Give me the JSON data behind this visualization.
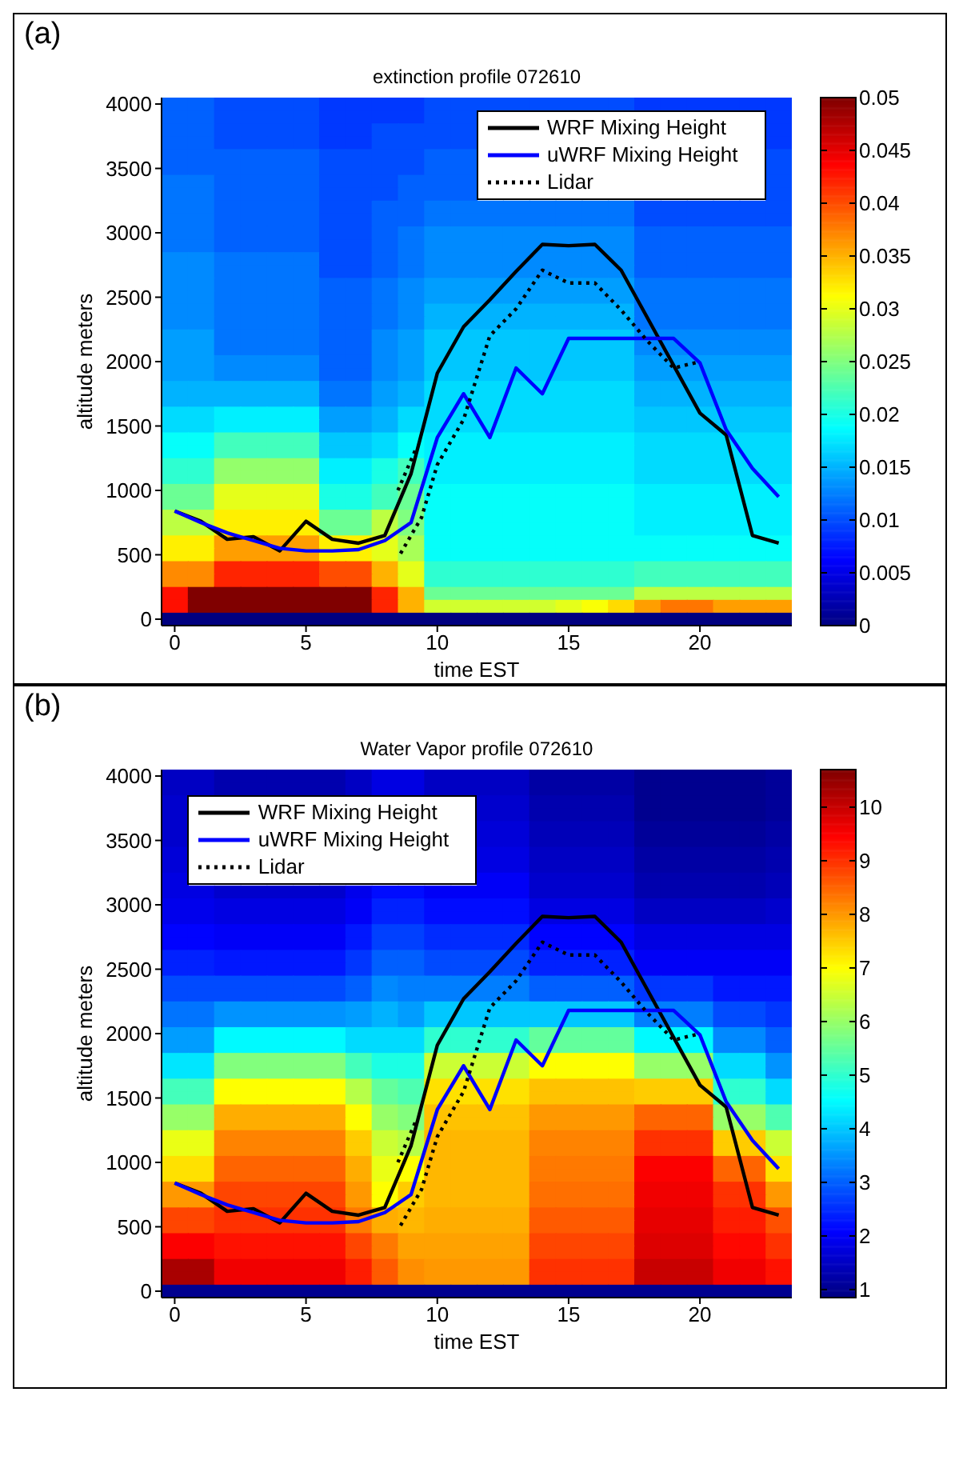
{
  "chart_data": [
    {
      "type": "heatmap",
      "title": "extinction profile 072610",
      "annotations": [
        "(a)"
      ],
      "xlabel": "time EST",
      "ylabel": "altitude meters",
      "xlim": [
        -0.5,
        23.5
      ],
      "ylim": [
        -50,
        4050
      ],
      "xticks": [
        0,
        5,
        10,
        15,
        20
      ],
      "yticks": [
        0,
        500,
        1000,
        1500,
        2000,
        2500,
        3000,
        3500,
        4000
      ],
      "clim": [
        0,
        0.05
      ],
      "cticks": [
        0,
        0.005,
        0.01,
        0.015,
        0.02,
        0.025,
        0.03,
        0.035,
        0.04,
        0.045,
        0.05
      ],
      "legend": "top right",
      "cells": [
        [
          0.011,
          0.011,
          0.01,
          0.01,
          0.01,
          0.01,
          0.009,
          0.009,
          0.009,
          0.009,
          0.01,
          0.01,
          0.01,
          0.01,
          0.01,
          0.01,
          0.01,
          0.01,
          0.009,
          0.009,
          0.009,
          0.009,
          0.009,
          0.009
        ],
        [
          0.011,
          0.011,
          0.01,
          0.01,
          0.01,
          0.01,
          0.009,
          0.009,
          0.009,
          0.009,
          0.01,
          0.01,
          null,
          null,
          null,
          null,
          null,
          null,
          null,
          null,
          null,
          null,
          null,
          0.009
        ],
        [
          0.011,
          0.011,
          0.01,
          0.01,
          0.01,
          0.01,
          0.009,
          0.009,
          0.01,
          0.01,
          0.01,
          0.01,
          null,
          null,
          null,
          null,
          null,
          null,
          null,
          null,
          null,
          null,
          null,
          0.009
        ],
        [
          0.011,
          0.011,
          0.01,
          0.01,
          0.01,
          0.01,
          0.009,
          0.009,
          0.01,
          0.01,
          0.01,
          0.01,
          null,
          null,
          null,
          null,
          null,
          null,
          null,
          null,
          null,
          null,
          null,
          0.009
        ],
        [
          0.011,
          0.011,
          0.011,
          0.011,
          0.011,
          0.011,
          0.01,
          0.01,
          0.01,
          0.01,
          0.011,
          0.011,
          null,
          null,
          null,
          null,
          null,
          null,
          null,
          null,
          null,
          null,
          null,
          0.01
        ],
        [
          0.011,
          0.011,
          0.011,
          0.011,
          0.011,
          0.011,
          0.01,
          0.01,
          0.01,
          0.01,
          0.011,
          0.011,
          null,
          null,
          null,
          null,
          null,
          null,
          null,
          null,
          null,
          null,
          null,
          0.01
        ],
        [
          0.012,
          0.012,
          0.011,
          0.011,
          0.011,
          0.011,
          0.01,
          0.01,
          0.01,
          0.011,
          0.011,
          0.011,
          null,
          null,
          null,
          null,
          null,
          null,
          null,
          null,
          null,
          null,
          null,
          0.01
        ],
        [
          0.012,
          0.012,
          0.011,
          0.011,
          0.011,
          0.011,
          0.01,
          0.01,
          0.01,
          0.011,
          0.011,
          0.011,
          null,
          null,
          null,
          null,
          null,
          null,
          null,
          null,
          null,
          null,
          null,
          0.01
        ],
        [
          0.012,
          0.012,
          0.011,
          0.011,
          0.011,
          0.011,
          0.01,
          0.01,
          0.011,
          0.011,
          0.012,
          0.012,
          0.012,
          0.012,
          0.012,
          0.012,
          0.012,
          0.012,
          0.01,
          0.01,
          0.01,
          0.01,
          0.01,
          0.01
        ],
        [
          0.012,
          0.012,
          0.011,
          0.011,
          0.011,
          0.011,
          0.01,
          0.01,
          0.011,
          0.011,
          0.012,
          0.012,
          0.012,
          0.012,
          0.012,
          0.012,
          0.012,
          0.012,
          0.01,
          0.01,
          0.01,
          0.01,
          0.01,
          0.01
        ],
        [
          0.012,
          0.012,
          0.011,
          0.011,
          0.011,
          0.011,
          0.01,
          0.01,
          0.011,
          0.012,
          0.013,
          0.013,
          0.013,
          0.013,
          0.013,
          0.013,
          0.013,
          0.013,
          0.011,
          0.011,
          0.011,
          0.011,
          0.011,
          0.011
        ],
        [
          0.012,
          0.012,
          0.011,
          0.011,
          0.011,
          0.011,
          0.01,
          0.01,
          0.011,
          0.012,
          0.013,
          0.013,
          0.013,
          0.013,
          0.013,
          0.013,
          0.013,
          0.013,
          0.011,
          0.011,
          0.011,
          0.011,
          0.011,
          0.011
        ],
        [
          0.013,
          0.013,
          0.012,
          0.012,
          0.012,
          0.012,
          0.01,
          0.01,
          0.011,
          0.012,
          0.013,
          0.013,
          0.013,
          0.013,
          0.013,
          0.013,
          0.013,
          0.013,
          0.011,
          0.011,
          0.011,
          0.011,
          0.011,
          0.011
        ],
        [
          0.013,
          0.013,
          0.012,
          0.012,
          0.012,
          0.012,
          0.01,
          0.01,
          0.011,
          0.012,
          0.013,
          0.013,
          0.013,
          0.013,
          0.013,
          0.013,
          0.013,
          0.013,
          0.011,
          0.011,
          0.011,
          0.011,
          0.011,
          0.011
        ],
        [
          0.013,
          0.013,
          0.012,
          0.012,
          0.012,
          0.012,
          0.011,
          0.011,
          0.012,
          0.013,
          0.014,
          0.014,
          0.014,
          0.014,
          0.014,
          0.014,
          0.014,
          0.014,
          0.012,
          0.012,
          0.012,
          0.012,
          0.012,
          0.012
        ],
        [
          0.013,
          0.013,
          0.012,
          0.012,
          0.012,
          0.012,
          0.011,
          0.011,
          0.012,
          0.013,
          0.014,
          0.014,
          0.014,
          0.014,
          0.014,
          0.014,
          0.014,
          0.014,
          0.012,
          0.012,
          0.012,
          0.012,
          0.012,
          0.012
        ],
        [
          0.013,
          0.013,
          0.012,
          0.012,
          0.012,
          0.012,
          0.011,
          0.011,
          0.012,
          0.013,
          0.015,
          0.015,
          0.015,
          0.015,
          0.015,
          0.015,
          0.015,
          0.015,
          0.012,
          0.012,
          0.012,
          0.012,
          0.012,
          0.012
        ],
        [
          0.013,
          0.013,
          0.012,
          0.012,
          0.012,
          0.012,
          0.011,
          0.011,
          0.012,
          0.013,
          0.015,
          0.015,
          0.015,
          0.015,
          0.015,
          0.015,
          0.015,
          0.015,
          0.012,
          0.012,
          0.012,
          0.012,
          0.012,
          0.012
        ],
        [
          0.014,
          0.014,
          0.012,
          0.012,
          0.012,
          0.012,
          0.011,
          0.011,
          0.013,
          0.014,
          0.016,
          0.016,
          0.016,
          0.016,
          0.016,
          0.016,
          0.016,
          0.016,
          0.013,
          0.013,
          0.013,
          0.013,
          0.013,
          0.013
        ],
        [
          0.014,
          0.014,
          0.012,
          0.012,
          0.012,
          0.012,
          0.011,
          0.011,
          0.013,
          0.014,
          0.016,
          0.016,
          0.016,
          0.016,
          0.016,
          0.016,
          0.016,
          0.016,
          0.013,
          0.013,
          0.013,
          0.013,
          0.013,
          0.013
        ],
        [
          0.014,
          0.014,
          0.013,
          0.013,
          0.013,
          0.013,
          0.011,
          0.011,
          0.013,
          0.014,
          0.016,
          0.016,
          0.016,
          0.016,
          0.016,
          0.016,
          0.016,
          0.016,
          0.014,
          0.014,
          0.014,
          0.014,
          0.014,
          0.014
        ],
        [
          0.014,
          0.014,
          0.013,
          0.013,
          0.013,
          0.013,
          0.011,
          0.011,
          0.013,
          0.014,
          0.016,
          0.016,
          0.016,
          0.016,
          0.016,
          0.016,
          0.016,
          0.016,
          0.014,
          0.014,
          0.014,
          0.014,
          0.014,
          0.014
        ],
        [
          0.015,
          0.015,
          0.015,
          0.015,
          0.015,
          0.015,
          0.012,
          0.012,
          0.014,
          0.015,
          0.017,
          0.017,
          0.017,
          0.017,
          0.017,
          0.017,
          0.017,
          0.017,
          0.015,
          0.015,
          0.015,
          0.015,
          0.015,
          0.015
        ],
        [
          0.015,
          0.015,
          0.015,
          0.015,
          0.015,
          0.015,
          0.012,
          0.012,
          0.014,
          0.015,
          0.017,
          0.017,
          0.017,
          0.017,
          0.017,
          0.017,
          0.017,
          0.017,
          0.015,
          0.015,
          0.015,
          0.015,
          0.015,
          0.015
        ],
        [
          0.017,
          0.017,
          0.018,
          0.018,
          0.018,
          0.018,
          0.014,
          0.014,
          0.015,
          0.017,
          0.017,
          0.017,
          0.017,
          0.017,
          0.017,
          0.017,
          0.017,
          0.017,
          0.016,
          0.016,
          0.016,
          0.016,
          0.016,
          0.016
        ],
        [
          0.017,
          0.017,
          0.018,
          0.018,
          0.018,
          0.018,
          0.014,
          0.014,
          0.015,
          0.017,
          0.017,
          0.017,
          0.017,
          0.017,
          0.017,
          0.017,
          0.017,
          0.017,
          0.016,
          0.016,
          0.016,
          0.016,
          0.016,
          0.016
        ],
        [
          0.019,
          0.019,
          0.022,
          0.022,
          0.022,
          0.022,
          0.016,
          0.016,
          0.017,
          0.019,
          0.018,
          0.018,
          0.018,
          0.018,
          0.018,
          0.018,
          0.018,
          0.018,
          0.017,
          0.017,
          0.017,
          0.017,
          0.017,
          0.017
        ],
        [
          0.019,
          0.019,
          0.022,
          0.022,
          0.022,
          0.022,
          0.016,
          0.016,
          0.017,
          0.019,
          0.018,
          0.018,
          0.018,
          0.018,
          0.018,
          0.018,
          0.018,
          0.018,
          0.017,
          0.017,
          0.017,
          0.017,
          0.017,
          0.017
        ],
        [
          0.021,
          0.021,
          0.026,
          0.026,
          0.026,
          0.026,
          0.018,
          0.018,
          0.02,
          0.022,
          0.018,
          0.018,
          0.018,
          0.018,
          0.018,
          0.018,
          0.018,
          0.018,
          0.017,
          0.017,
          0.017,
          0.017,
          0.017,
          0.017
        ],
        [
          0.021,
          0.021,
          0.026,
          0.026,
          0.026,
          0.026,
          0.018,
          0.018,
          0.02,
          0.022,
          0.018,
          0.018,
          0.018,
          0.018,
          0.018,
          0.018,
          0.018,
          0.018,
          0.017,
          0.017,
          0.017,
          0.017,
          0.017,
          0.017
        ],
        [
          0.024,
          0.024,
          0.03,
          0.03,
          0.03,
          0.03,
          0.02,
          0.02,
          0.022,
          0.024,
          0.019,
          0.019,
          0.019,
          0.019,
          0.019,
          0.019,
          0.019,
          0.019,
          0.018,
          0.018,
          0.018,
          0.018,
          0.018,
          0.018
        ],
        [
          0.024,
          0.024,
          0.03,
          0.03,
          0.03,
          0.03,
          0.02,
          0.02,
          0.022,
          0.024,
          0.019,
          0.019,
          0.019,
          0.019,
          0.019,
          0.019,
          0.019,
          0.019,
          0.018,
          0.018,
          0.018,
          0.018,
          0.018,
          0.018
        ],
        [
          0.028,
          0.028,
          0.032,
          0.032,
          0.032,
          0.032,
          0.024,
          0.024,
          0.028,
          0.025,
          0.019,
          0.019,
          0.019,
          0.019,
          0.019,
          0.019,
          0.019,
          0.019,
          0.018,
          0.018,
          0.018,
          0.018,
          0.018,
          0.018
        ],
        [
          0.028,
          0.028,
          0.032,
          0.032,
          0.032,
          0.032,
          0.024,
          0.024,
          0.028,
          0.025,
          0.019,
          0.019,
          0.019,
          0.019,
          0.019,
          0.019,
          0.019,
          0.019,
          0.018,
          0.018,
          0.018,
          0.018,
          0.018,
          0.018
        ],
        [
          0.032,
          0.032,
          0.036,
          0.036,
          0.036,
          0.036,
          0.032,
          0.032,
          0.03,
          0.027,
          0.019,
          0.019,
          0.019,
          0.019,
          0.019,
          0.019,
          0.019,
          0.019,
          0.019,
          0.019,
          0.019,
          0.019,
          0.019,
          0.019
        ],
        [
          0.032,
          0.032,
          0.036,
          0.036,
          0.036,
          0.036,
          0.032,
          0.032,
          0.03,
          0.027,
          0.019,
          0.019,
          0.019,
          0.019,
          0.019,
          0.019,
          0.019,
          0.019,
          0.019,
          0.019,
          0.019,
          0.019,
          0.019,
          0.019
        ],
        [
          0.037,
          0.037,
          0.042,
          0.042,
          0.042,
          0.042,
          0.04,
          0.04,
          0.035,
          0.03,
          0.021,
          0.021,
          0.021,
          0.021,
          0.021,
          0.021,
          0.021,
          0.021,
          0.022,
          0.022,
          0.022,
          0.022,
          0.022,
          0.022
        ],
        [
          0.037,
          0.037,
          0.042,
          0.042,
          0.042,
          0.042,
          0.04,
          0.04,
          0.035,
          0.03,
          0.021,
          0.021,
          0.021,
          0.021,
          0.021,
          0.021,
          0.021,
          0.021,
          0.022,
          0.022,
          0.022,
          0.022,
          0.022,
          0.022
        ],
        [
          0.043,
          0.05,
          0.05,
          0.05,
          0.05,
          0.05,
          0.05,
          0.05,
          0.042,
          0.035,
          0.024,
          0.024,
          0.024,
          0.024,
          0.024,
          0.024,
          0.024,
          0.024,
          0.028,
          0.028,
          0.028,
          0.028,
          0.028,
          0.028
        ],
        [
          0.043,
          0.05,
          0.05,
          0.05,
          0.05,
          0.05,
          0.05,
          0.05,
          0.042,
          0.035,
          0.029,
          0.029,
          0.029,
          0.029,
          0.029,
          0.03,
          0.031,
          0.033,
          0.036,
          0.038,
          0.038,
          0.036,
          0.036,
          0.036
        ],
        [
          0,
          0,
          0,
          0,
          0,
          0,
          0,
          0,
          0,
          0,
          0,
          0,
          0,
          0,
          0,
          0,
          0,
          0,
          0,
          0,
          0,
          0,
          0,
          0
        ]
      ],
      "series": [
        {
          "name": "WRF Mixing Height",
          "type": "line",
          "color": "#000000",
          "x": [
            0,
            1,
            2,
            3,
            4,
            5,
            6,
            7,
            8,
            9,
            10,
            11,
            12,
            13,
            14,
            15,
            16,
            17,
            18,
            19,
            20,
            21,
            22,
            23
          ],
          "values": [
            840,
            760,
            620,
            640,
            530,
            760,
            620,
            590,
            650,
            1130,
            1910,
            2270,
            2480,
            2700,
            2910,
            2900,
            2910,
            2710,
            2340,
            1970,
            1600,
            1430,
            650,
            590
          ]
        },
        {
          "name": "uWRF Mixing Height",
          "type": "line",
          "color": "#0000ff",
          "x": [
            0,
            1,
            2,
            3,
            4,
            5,
            6,
            7,
            8,
            9,
            10,
            11,
            12,
            13,
            14,
            15,
            16,
            17,
            18,
            19,
            20,
            21,
            22,
            23
          ],
          "values": [
            840,
            750,
            670,
            610,
            550,
            530,
            530,
            540,
            610,
            750,
            1410,
            1750,
            1410,
            1950,
            1750,
            2180,
            2180,
            2180,
            2180,
            2180,
            1990,
            1470,
            1170,
            950
          ]
        },
        {
          "name": "Lidar",
          "type": "line",
          "color": "#000000",
          "line_style": "dotted",
          "x": [
            8.6,
            9.4,
            10,
            11,
            12,
            13,
            14,
            15,
            16,
            17,
            18,
            19,
            20
          ],
          "values": [
            510,
            790,
            1200,
            1550,
            2200,
            2410,
            2710,
            2610,
            2610,
            2400,
            2160,
            1950,
            2000
          ]
        },
        {
          "type": "line",
          "color": "#000000",
          "line_style": "dotted",
          "x": [
            8.5,
            9.2
          ],
          "values": [
            1000,
            1330
          ]
        }
      ]
    },
    {
      "type": "heatmap",
      "title": "Water Vapor profile 072610",
      "annotations": [
        "(b)"
      ],
      "xlabel": "time EST",
      "ylabel": "altitude meters",
      "xlim": [
        -0.5,
        23.5
      ],
      "ylim": [
        -50,
        4050
      ],
      "xticks": [
        0,
        5,
        10,
        15,
        20
      ],
      "yticks": [
        0,
        500,
        1000,
        1500,
        2000,
        2500,
        3000,
        3500,
        4000
      ],
      "clim": [
        0.85,
        10.7
      ],
      "cticks": [
        1,
        2,
        3,
        4,
        5,
        6,
        7,
        8,
        9,
        10
      ],
      "legend": "top left",
      "cells": [
        [
          1.5,
          1.5,
          1.3,
          1.3,
          1.3,
          1.3,
          1.3,
          1.5,
          1.8,
          1.8,
          1.5,
          1.5,
          1.5,
          1.5,
          1.2,
          1.2,
          1.2,
          1.2,
          1,
          1,
          1,
          1,
          1,
          1.1
        ],
        [
          1.5,
          1.5,
          1.3,
          1.3,
          1.3,
          1.3,
          1.3,
          1.5,
          1.8,
          1.8,
          1.5,
          1.5,
          1.5,
          1.5,
          1.2,
          1.2,
          1.2,
          1.2,
          1,
          1,
          1,
          1,
          1,
          1.1
        ],
        [
          1.6,
          null,
          null,
          null,
          null,
          null,
          null,
          null,
          null,
          null,
          null,
          null,
          1.6,
          1.6,
          1.3,
          1.3,
          1.3,
          1.3,
          1,
          1,
          1,
          1,
          1,
          1.1
        ],
        [
          1.6,
          null,
          null,
          null,
          null,
          null,
          null,
          null,
          null,
          null,
          null,
          null,
          1.6,
          1.6,
          1.3,
          1.3,
          1.3,
          1.3,
          1,
          1,
          1,
          1,
          1,
          1.1
        ],
        [
          1.6,
          null,
          null,
          null,
          null,
          null,
          null,
          null,
          null,
          null,
          null,
          null,
          1.7,
          1.7,
          1.4,
          1.4,
          1.4,
          1.4,
          1.1,
          1.1,
          1.1,
          1.1,
          1.1,
          1.2
        ],
        [
          1.6,
          null,
          null,
          null,
          null,
          null,
          null,
          null,
          null,
          null,
          null,
          null,
          1.7,
          1.7,
          1.4,
          1.4,
          1.4,
          1.4,
          1.1,
          1.1,
          1.1,
          1.1,
          1.1,
          1.2
        ],
        [
          1.7,
          null,
          null,
          null,
          null,
          null,
          null,
          null,
          null,
          null,
          null,
          null,
          1.8,
          1.8,
          1.5,
          1.5,
          1.5,
          1.5,
          1.2,
          1.2,
          1.2,
          1.2,
          1.2,
          1.3
        ],
        [
          1.7,
          null,
          null,
          null,
          null,
          null,
          null,
          null,
          null,
          null,
          null,
          null,
          1.8,
          1.8,
          1.5,
          1.5,
          1.5,
          1.5,
          1.2,
          1.2,
          1.2,
          1.2,
          1.2,
          1.3
        ],
        [
          1.8,
          null,
          null,
          null,
          null,
          null,
          null,
          null,
          null,
          null,
          null,
          null,
          2,
          2,
          1.6,
          1.6,
          1.6,
          1.6,
          1.3,
          1.3,
          1.3,
          1.3,
          1.3,
          1.4
        ],
        [
          1.8,
          1.8,
          1.6,
          1.6,
          1.6,
          1.6,
          1.6,
          1.9,
          2.2,
          2.2,
          2,
          2,
          2,
          2,
          1.6,
          1.6,
          1.6,
          1.6,
          1.3,
          1.3,
          1.3,
          1.3,
          1.3,
          1.4
        ],
        [
          1.9,
          1.9,
          1.8,
          1.8,
          1.8,
          1.8,
          1.8,
          2,
          2.4,
          2.4,
          2.2,
          2.2,
          2.2,
          2.2,
          1.8,
          1.8,
          1.8,
          1.8,
          1.5,
          1.5,
          1.5,
          1.5,
          1.5,
          1.6
        ],
        [
          1.9,
          1.9,
          1.8,
          1.8,
          1.8,
          1.8,
          1.8,
          2,
          2.4,
          2.4,
          2.2,
          2.2,
          2.2,
          2.2,
          1.8,
          1.8,
          1.8,
          1.8,
          1.5,
          1.5,
          1.5,
          1.5,
          1.5,
          1.6
        ],
        [
          2.1,
          2.1,
          2,
          2,
          2,
          2,
          2,
          2.3,
          2.7,
          2.7,
          2.5,
          2.5,
          2.5,
          2.5,
          2.1,
          2.1,
          2.1,
          2.1,
          1.8,
          1.8,
          1.8,
          1.8,
          1.8,
          1.8
        ],
        [
          2.1,
          2.1,
          2,
          2,
          2,
          2,
          2,
          2.3,
          2.7,
          2.7,
          2.5,
          2.5,
          2.5,
          2.5,
          2.1,
          2.1,
          2.1,
          2.1,
          1.8,
          1.8,
          1.8,
          1.8,
          1.8,
          1.8
        ],
        [
          2.4,
          2.4,
          2.3,
          2.3,
          2.3,
          2.3,
          2.3,
          2.6,
          3,
          3,
          2.8,
          2.8,
          2.8,
          2.8,
          2.4,
          2.4,
          2.4,
          2.4,
          2,
          2,
          2,
          2,
          2,
          2
        ],
        [
          2.4,
          2.4,
          2.3,
          2.3,
          2.3,
          2.3,
          2.3,
          2.6,
          3,
          3,
          2.8,
          2.8,
          2.8,
          2.8,
          2.4,
          2.4,
          2.4,
          2.4,
          2,
          2,
          2,
          2,
          2,
          2
        ],
        [
          2.8,
          2.8,
          2.8,
          2.8,
          2.8,
          2.8,
          2.8,
          3,
          3.4,
          3.3,
          3.3,
          3.3,
          3.3,
          3.3,
          3,
          3,
          3,
          3,
          2.6,
          2.6,
          2.6,
          2.3,
          2.3,
          2.3
        ],
        [
          2.8,
          2.8,
          2.8,
          2.8,
          2.8,
          2.8,
          2.8,
          3,
          3.4,
          3.3,
          3.3,
          3.3,
          3.3,
          3.3,
          3,
          3,
          3,
          3,
          2.6,
          2.6,
          2.6,
          2.3,
          2.3,
          2.3
        ],
        [
          3.2,
          3.2,
          3.5,
          3.5,
          3.5,
          3.5,
          3.5,
          3.6,
          3.8,
          3.6,
          4,
          4,
          4,
          4,
          4,
          4,
          4,
          4,
          3.3,
          3.3,
          3.3,
          2.8,
          2.8,
          2.6
        ],
        [
          3.2,
          3.2,
          3.5,
          3.5,
          3.5,
          3.5,
          3.5,
          3.6,
          3.8,
          3.6,
          4,
          4,
          4,
          4,
          4,
          4,
          4,
          4,
          3.3,
          3.3,
          3.3,
          2.8,
          2.8,
          2.6
        ],
        [
          3.6,
          3.6,
          4.5,
          4.5,
          4.5,
          4.5,
          4.5,
          4.2,
          4.2,
          4.2,
          5,
          5,
          5,
          5,
          5.5,
          5.5,
          5.5,
          5.5,
          4.5,
          4.5,
          4.5,
          3.4,
          3.4,
          3
        ],
        [
          3.6,
          3.6,
          4.5,
          4.5,
          4.5,
          4.5,
          4.5,
          4.2,
          4.2,
          4.2,
          5,
          5,
          5,
          5,
          5.5,
          5.5,
          5.5,
          5.5,
          4.5,
          4.5,
          4.5,
          3.4,
          3.4,
          3
        ],
        [
          4.3,
          4.3,
          5.8,
          5.8,
          5.8,
          5.8,
          5.8,
          5.2,
          4.8,
          4.8,
          6.5,
          6.5,
          6.5,
          6.5,
          7,
          7,
          7,
          7,
          6,
          6,
          6,
          4.2,
          4.2,
          3.5
        ],
        [
          4.3,
          4.3,
          5.8,
          5.8,
          5.8,
          5.8,
          5.8,
          5.2,
          4.8,
          4.8,
          6.5,
          6.5,
          6.5,
          6.5,
          7,
          7,
          7,
          7,
          6,
          6,
          6,
          4.2,
          4.2,
          3.5
        ],
        [
          5.2,
          5.2,
          7,
          7,
          7,
          7,
          7,
          6.3,
          5.5,
          5.3,
          7.3,
          7.3,
          7.3,
          7.3,
          7.6,
          7.6,
          7.6,
          7.6,
          7.5,
          7.5,
          7.5,
          5,
          5,
          4.2
        ],
        [
          5.2,
          5.2,
          7,
          7,
          7,
          7,
          7,
          6.3,
          5.5,
          5.3,
          7.3,
          7.3,
          7.3,
          7.3,
          7.6,
          7.6,
          7.6,
          7.6,
          7.5,
          7.5,
          7.5,
          5,
          5,
          4.2
        ],
        [
          6,
          6,
          7.8,
          7.8,
          7.8,
          7.8,
          7.8,
          7,
          6,
          5.8,
          7.6,
          7.6,
          7.6,
          7.6,
          8,
          8,
          8,
          8,
          8.5,
          8.5,
          8.5,
          6,
          6,
          5.3
        ],
        [
          6,
          6,
          7.8,
          7.8,
          7.8,
          7.8,
          7.8,
          7,
          6,
          5.8,
          7.6,
          7.6,
          7.6,
          7.6,
          8,
          8,
          8,
          8,
          8.5,
          8.5,
          8.5,
          6,
          6,
          5.3
        ],
        [
          6.8,
          6.8,
          8.2,
          8.2,
          8.2,
          8.2,
          8.2,
          7.5,
          6.5,
          6.3,
          7.7,
          7.7,
          7.7,
          7.7,
          8.2,
          8.2,
          8.2,
          8.2,
          9,
          9,
          9,
          7.5,
          7.5,
          6.5
        ],
        [
          6.8,
          6.8,
          8.2,
          8.2,
          8.2,
          8.2,
          8.2,
          7.5,
          6.5,
          6.3,
          7.7,
          7.7,
          7.7,
          7.7,
          8.2,
          8.2,
          8.2,
          8.2,
          9,
          9,
          9,
          7.5,
          7.5,
          6.5
        ],
        [
          7.3,
          7.3,
          8.5,
          8.5,
          8.5,
          8.5,
          8.5,
          7.8,
          6.8,
          7,
          7.7,
          7.7,
          7.7,
          7.7,
          8.3,
          8.3,
          8.3,
          8.3,
          9.5,
          9.5,
          9.5,
          8.5,
          8.5,
          7.3
        ],
        [
          7.3,
          7.3,
          8.5,
          8.5,
          8.5,
          8.5,
          8.5,
          7.8,
          6.8,
          7,
          7.7,
          7.7,
          7.7,
          7.7,
          8.3,
          8.3,
          8.3,
          8.3,
          9.5,
          9.5,
          9.5,
          8.5,
          8.5,
          7.3
        ],
        [
          8,
          8,
          8.8,
          8.8,
          8.8,
          8.8,
          8.8,
          8,
          7,
          7.5,
          7.7,
          7.7,
          7.7,
          7.7,
          8.4,
          8.4,
          8.4,
          8.4,
          9.6,
          9.6,
          9.6,
          9,
          9,
          8
        ],
        [
          8,
          8,
          8.8,
          8.8,
          8.8,
          8.8,
          8.8,
          8,
          7,
          7.5,
          7.7,
          7.7,
          7.7,
          7.7,
          8.4,
          8.4,
          8.4,
          8.4,
          9.6,
          9.6,
          9.6,
          9,
          9,
          8
        ],
        [
          8.8,
          8.8,
          9,
          9,
          9,
          9,
          9,
          8.3,
          7.8,
          7.7,
          7.8,
          7.8,
          7.8,
          7.8,
          8.6,
          8.6,
          8.6,
          8.6,
          9.7,
          9.7,
          9.7,
          9.2,
          9.2,
          8.7
        ],
        [
          8.8,
          8.8,
          9,
          9,
          9,
          9,
          9,
          8.3,
          7.8,
          7.7,
          7.8,
          7.8,
          7.8,
          7.8,
          8.6,
          8.6,
          8.6,
          8.6,
          9.7,
          9.7,
          9.7,
          9.2,
          9.2,
          8.7
        ],
        [
          9.5,
          9.5,
          9.3,
          9.3,
          9.3,
          9.3,
          9.3,
          8.8,
          8.3,
          7.9,
          7.9,
          7.9,
          7.9,
          7.9,
          8.8,
          8.8,
          8.8,
          8.8,
          9.8,
          9.8,
          9.8,
          9.4,
          9.4,
          9
        ],
        [
          9.5,
          9.5,
          9.3,
          9.3,
          9.3,
          9.3,
          9.3,
          8.8,
          8.3,
          7.9,
          7.9,
          7.9,
          7.9,
          7.9,
          8.8,
          8.8,
          8.8,
          8.8,
          9.8,
          9.8,
          9.8,
          9.4,
          9.4,
          9
        ],
        [
          10.3,
          10.3,
          9.6,
          9.6,
          9.6,
          9.6,
          9.6,
          9.2,
          8.6,
          8.1,
          8,
          8,
          8,
          8,
          9,
          9,
          9,
          9,
          10,
          10,
          10,
          9.6,
          9.6,
          9.3
        ],
        [
          10.3,
          10.3,
          9.6,
          9.6,
          9.6,
          9.6,
          9.6,
          9.2,
          8.6,
          8.1,
          8,
          8,
          8,
          8,
          9,
          9,
          9,
          9,
          10,
          10,
          10,
          9.6,
          9.6,
          9.3
        ],
        [
          1,
          1,
          1,
          1,
          1,
          1,
          1,
          1,
          1,
          1,
          1,
          1,
          1,
          1,
          1,
          1,
          1,
          1,
          1,
          1,
          1,
          1,
          1,
          1
        ]
      ],
      "series": [
        {
          "name": "WRF Mixing Height",
          "type": "line",
          "color": "#000000",
          "x": [
            0,
            1,
            2,
            3,
            4,
            5,
            6,
            7,
            8,
            9,
            10,
            11,
            12,
            13,
            14,
            15,
            16,
            17,
            18,
            19,
            20,
            21,
            22,
            23
          ],
          "values": [
            840,
            760,
            620,
            640,
            530,
            760,
            620,
            590,
            650,
            1130,
            1910,
            2270,
            2480,
            2700,
            2910,
            2900,
            2910,
            2710,
            2340,
            1970,
            1600,
            1430,
            650,
            590
          ]
        },
        {
          "name": "uWRF Mixing Height",
          "type": "line",
          "color": "#0000ff",
          "x": [
            0,
            1,
            2,
            3,
            4,
            5,
            6,
            7,
            8,
            9,
            10,
            11,
            12,
            13,
            14,
            15,
            16,
            17,
            18,
            19,
            20,
            21,
            22,
            23
          ],
          "values": [
            840,
            750,
            670,
            610,
            550,
            530,
            530,
            540,
            610,
            750,
            1410,
            1750,
            1410,
            1950,
            1750,
            2180,
            2180,
            2180,
            2180,
            2180,
            1990,
            1470,
            1170,
            950
          ]
        },
        {
          "name": "Lidar",
          "type": "line",
          "color": "#000000",
          "line_style": "dotted",
          "x": [
            8.6,
            9.4,
            10,
            11,
            12,
            13,
            14,
            15,
            16,
            17,
            18,
            19,
            20
          ],
          "values": [
            510,
            790,
            1200,
            1550,
            2200,
            2410,
            2710,
            2610,
            2610,
            2400,
            2160,
            1950,
            2000
          ]
        },
        {
          "type": "line",
          "color": "#000000",
          "line_style": "dotted",
          "x": [
            8.5,
            9.2
          ],
          "values": [
            1000,
            1330
          ]
        }
      ]
    }
  ]
}
